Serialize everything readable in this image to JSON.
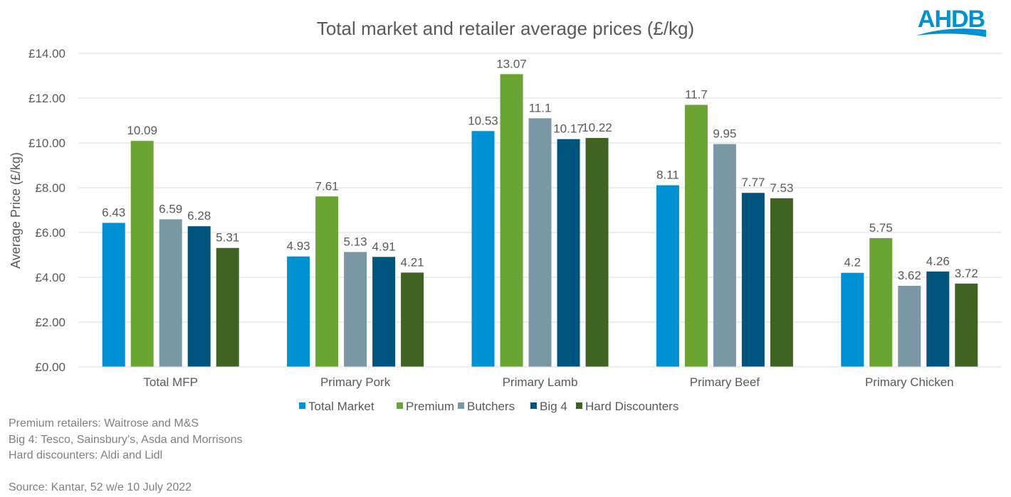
{
  "logo": {
    "text": "AHDB",
    "color": "#0090D4"
  },
  "chart_data": {
    "type": "bar",
    "title": "Total market and retailer average prices (£/kg)",
    "xlabel": "",
    "ylabel": "Average Price (£/kg)",
    "ylim": [
      0,
      14
    ],
    "yticks": [
      0,
      2,
      4,
      6,
      8,
      10,
      12,
      14
    ],
    "ytick_labels": [
      "£0.00",
      "£2.00",
      "£4.00",
      "£6.00",
      "£8.00",
      "£10.00",
      "£12.00",
      "£14.00"
    ],
    "grid": true,
    "legend_position": "bottom",
    "categories": [
      "Total MFP",
      "Primary Pork",
      "Primary Lamb",
      "Primary Beef",
      "Primary Chicken"
    ],
    "series": [
      {
        "name": "Total Market",
        "color": "#0090D4",
        "values": [
          6.43,
          4.93,
          10.53,
          8.11,
          4.2
        ]
      },
      {
        "name": "Premium",
        "color": "#6AA433",
        "values": [
          10.09,
          7.61,
          13.07,
          11.7,
          5.75
        ]
      },
      {
        "name": "Butchers",
        "color": "#7A97A6",
        "values": [
          6.59,
          5.13,
          11.1,
          9.95,
          3.62
        ]
      },
      {
        "name": "Big 4",
        "color": "#00557F",
        "values": [
          6.28,
          4.91,
          10.17,
          7.77,
          4.26
        ]
      },
      {
        "name": "Hard Discounters",
        "color": "#3F6320",
        "values": [
          5.31,
          4.21,
          10.22,
          7.53,
          3.72
        ]
      }
    ]
  },
  "notes": [
    "Premium retailers: Waitrose and M&S",
    "Big 4: Tesco, Sainsbury’s, Asda and Morrisons",
    "Hard discounters: Aldi and Lidl",
    "",
    "Source: Kantar, 52 w/e 10 July 2022"
  ]
}
